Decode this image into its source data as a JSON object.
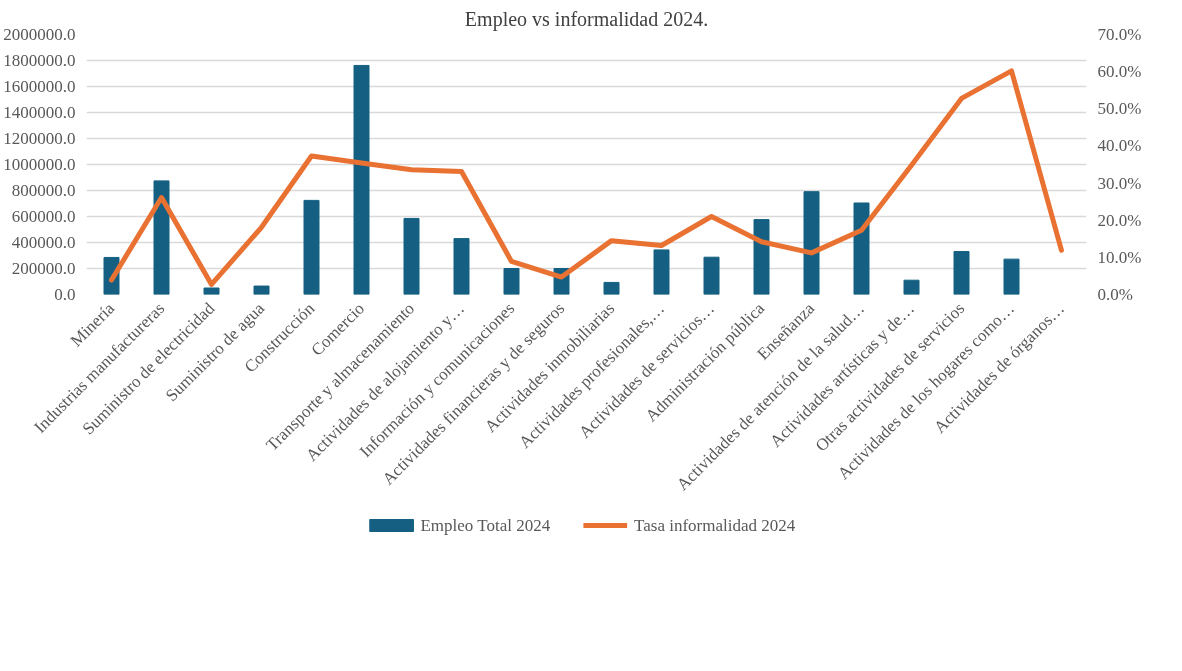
{
  "chart_data": {
    "type": "bar",
    "title": "Empleo vs informalidad 2024.",
    "categories": [
      "Minería",
      "Industrias manufactureras",
      "Suministro de electricidad",
      "Suministro de agua",
      "Construcción",
      "Comercio",
      "Transporte y almacenamiento",
      "Actividades de alojamiento y…",
      "Información y comunicaciones",
      "Actividades financieras y de seguros",
      "Actividades inmobiliarias",
      "Actividades profesionales,…",
      "Actividades de servicios…",
      "Administración pública",
      "Enseñanza",
      "Actividades de atención de la salud…",
      "Actividades artísticas y de…",
      "Otras actividades de servicios",
      "Actividades de los hogares como…",
      "Actividades de órganos…"
    ],
    "series": [
      {
        "name": "Empleo Total 2024",
        "color": "#156082",
        "values": [
          285000,
          874000,
          50000,
          65000,
          724000,
          1762000,
          585000,
          430000,
          200000,
          200000,
          93000,
          343000,
          287000,
          576000,
          791000,
          704000,
          110000,
          331000,
          272000,
          null
        ]
      },
      {
        "name": "Tasa informalidad 2024",
        "type": "line",
        "axis": "y2",
        "color": "#e97132",
        "values": [
          3.9,
          26.1,
          2.7,
          18.1,
          37.3,
          35.4,
          33.6,
          33.1,
          8.9,
          4.7,
          14.5,
          13.2,
          21.0,
          14.2,
          11.2,
          17.3,
          34.8,
          52.8,
          60.2,
          11.9
        ]
      }
    ],
    "ylim": [
      0,
      2000000
    ],
    "yticks": [
      {
        "value": 0,
        "label": "0.0"
      },
      {
        "value": 200000,
        "label": "200000.0"
      },
      {
        "value": 400000,
        "label": "400000.0"
      },
      {
        "value": 600000,
        "label": "600000.0"
      },
      {
        "value": 800000,
        "label": "800000.0"
      },
      {
        "value": 1000000,
        "label": "1000000.0"
      },
      {
        "value": 1200000,
        "label": "1200000.0"
      },
      {
        "value": 1400000,
        "label": "1400000.0"
      },
      {
        "value": 1600000,
        "label": "1600000.0"
      },
      {
        "value": 1800000,
        "label": "1800000.0"
      },
      {
        "value": 2000000,
        "label": "2000000.0"
      }
    ],
    "y2lim": [
      0,
      70
    ],
    "y2ticks": [
      {
        "value": 0,
        "label": "0.0%"
      },
      {
        "value": 10,
        "label": "10.0%"
      },
      {
        "value": 20,
        "label": "20.0%"
      },
      {
        "value": 30,
        "label": "30.0%"
      },
      {
        "value": 40,
        "label": "40.0%"
      },
      {
        "value": 50,
        "label": "50.0%"
      },
      {
        "value": 60,
        "label": "60.0%"
      },
      {
        "value": 70,
        "label": "70.0%"
      }
    ],
    "grid": "y",
    "legend": "bottom",
    "marker": "none",
    "line_style": "solid"
  }
}
